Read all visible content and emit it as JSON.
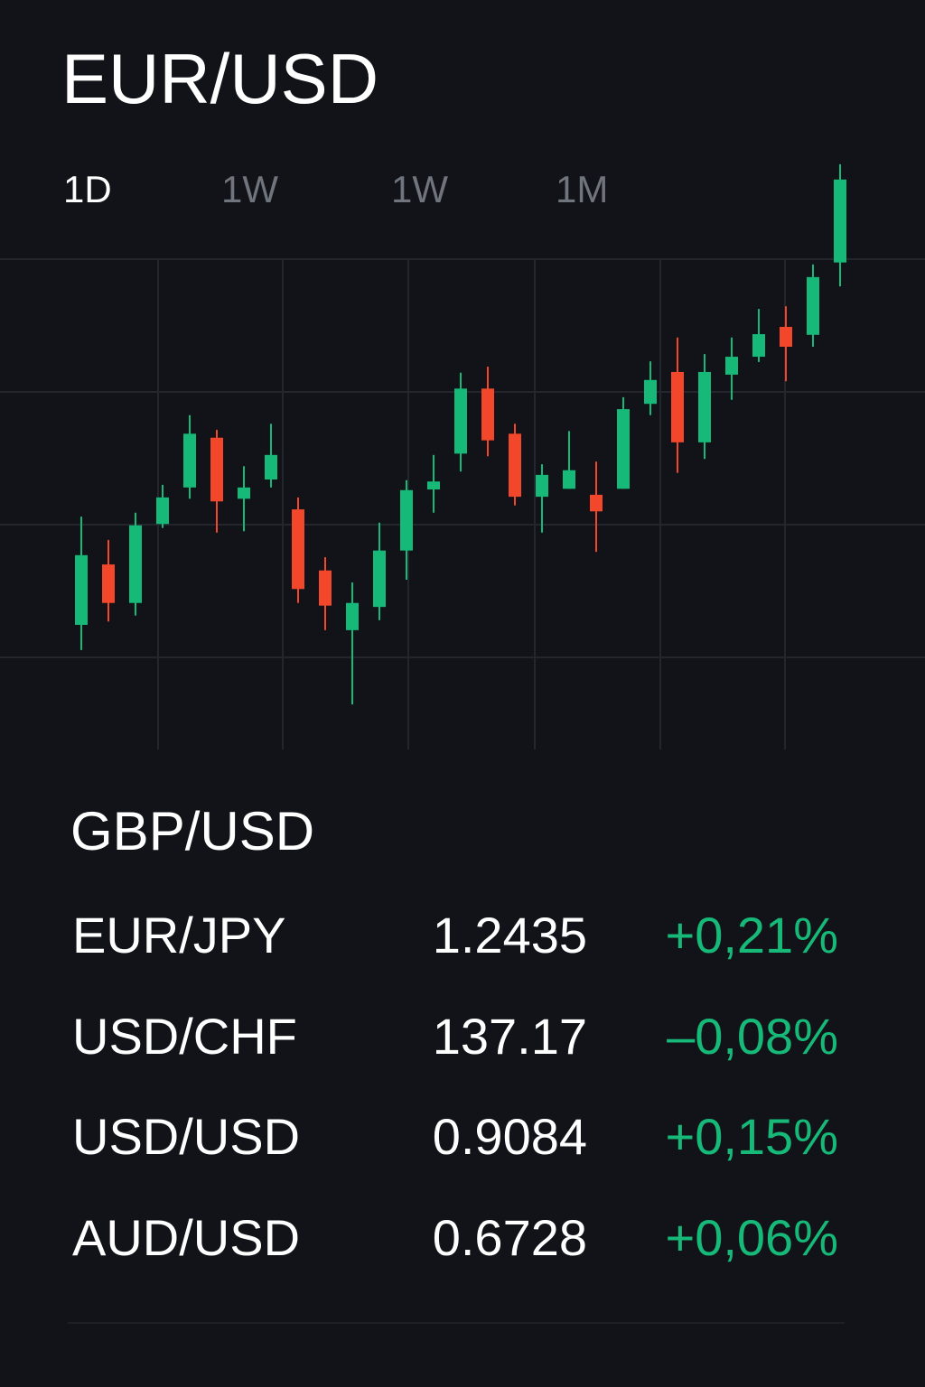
{
  "header": {
    "title": "EUR/USD"
  },
  "tabs": {
    "labels": [
      "1D",
      "1W",
      "1W",
      "1M"
    ],
    "active": 0
  },
  "chart_data": {
    "type": "candlestick",
    "open": [
      24.9,
      34.0,
      28.2,
      40.1,
      45.6,
      53.1,
      43.9,
      46.8,
      42.3,
      33.1,
      24.1,
      27.6,
      36.1,
      45.3,
      50.7,
      60.5,
      53.7,
      44.2,
      45.4,
      44.5,
      45.4,
      58.2,
      63.0,
      52.4,
      62.6,
      65.3,
      69.8,
      68.6,
      79.5
    ],
    "high": [
      41.2,
      37.7,
      41.8,
      46.0,
      56.5,
      54.3,
      48.8,
      55.2,
      44.1,
      35.1,
      31.3,
      40.3,
      46.7,
      50.5,
      62.9,
      63.8,
      55.2,
      49.1,
      54.1,
      49.5,
      59.2,
      64.6,
      68.2,
      65.7,
      68.2,
      72.5,
      72.9,
      79.2,
      94.3
    ],
    "low": [
      21.1,
      25.4,
      26.3,
      39.5,
      43.9,
      38.8,
      39.0,
      45.6,
      28.2,
      24.1,
      12.9,
      25.6,
      31.7,
      41.8,
      48.0,
      50.3,
      42.9,
      38.8,
      45.4,
      35.9,
      45.4,
      56.5,
      47.8,
      49.9,
      58.8,
      64.5,
      61.6,
      66.8,
      75.9
    ],
    "close": [
      35.4,
      28.2,
      39.9,
      44.1,
      53.7,
      43.5,
      45.6,
      50.5,
      30.3,
      27.8,
      28.2,
      36.1,
      45.2,
      46.5,
      60.5,
      52.7,
      44.2,
      47.5,
      48.2,
      42.0,
      57.4,
      61.8,
      52.4,
      63.0,
      65.3,
      68.7,
      66.8,
      77.3,
      92.0
    ],
    "up_color": "#17b978",
    "down_color": "#f2472a",
    "ylim": [
      0,
      100
    ],
    "yticks": [
      20,
      40,
      60,
      80
    ],
    "grid": true
  },
  "watchlist": {
    "title": "GBP/USD",
    "rows": [
      [
        "EUR/JPY",
        "1.2435",
        "+0,21%"
      ],
      [
        "USD/CHF",
        "137.17",
        "–0,08%"
      ],
      [
        "USD/USD",
        "0.9084",
        "+0,15%"
      ],
      [
        "AUD/USD",
        "0.6728",
        "+0,06%"
      ]
    ],
    "change_color": "#17b978"
  }
}
